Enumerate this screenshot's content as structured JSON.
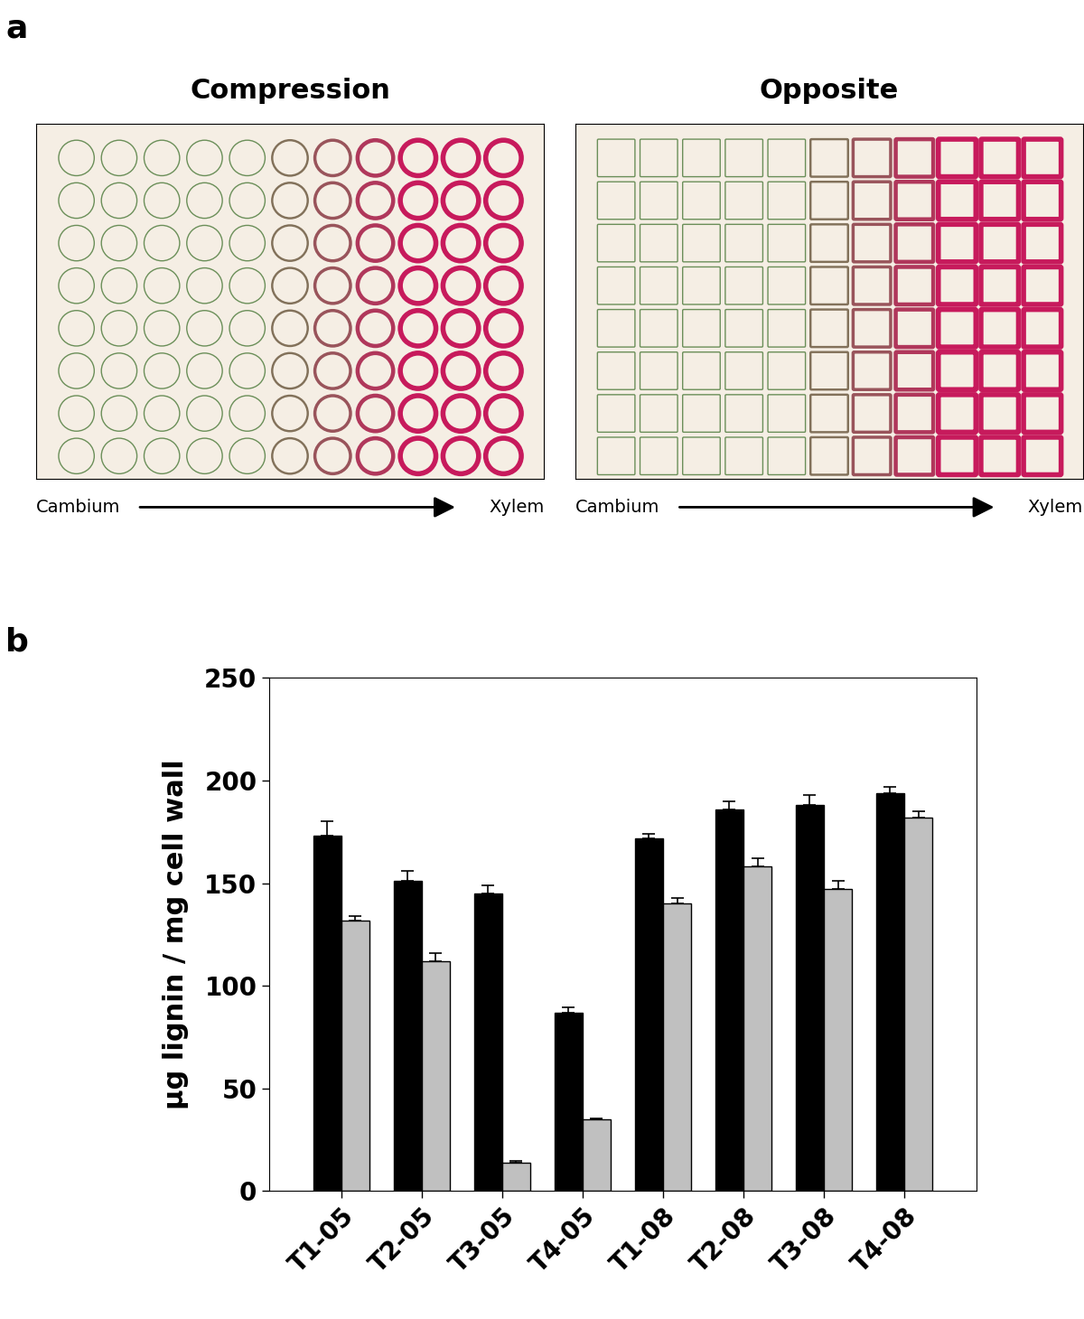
{
  "panel_labels": [
    "a",
    "b"
  ],
  "micrographs": [
    {
      "title": "Compression",
      "axis_start": "Cambium",
      "axis_end": "Xylem"
    },
    {
      "title": "Opposite",
      "axis_start": "Cambium",
      "axis_end": "Xylem"
    }
  ],
  "chart_data": {
    "type": "bar",
    "y_label": "µg lignin / mg cell wall",
    "categories": [
      "T1-05",
      "T2-05",
      "T3-05",
      "T4-05",
      "T1-08",
      "T2-08",
      "T3-08",
      "T4-08"
    ],
    "series": [
      {
        "color": "#000000",
        "values": [
          173,
          151,
          145,
          87,
          172,
          186,
          188,
          194
        ],
        "error": [
          7,
          5,
          4,
          2.5,
          2,
          4,
          5,
          3
        ]
      },
      {
        "color": "#c0c0c0",
        "values": [
          132,
          112,
          14,
          35,
          140,
          158,
          147,
          182
        ],
        "error": [
          2,
          4,
          0.5,
          0.5,
          3,
          4,
          4,
          3
        ]
      }
    ],
    "ylim": [
      0,
      250
    ],
    "yticks": [
      0,
      50,
      100,
      150,
      200,
      250
    ],
    "grid": false
  }
}
